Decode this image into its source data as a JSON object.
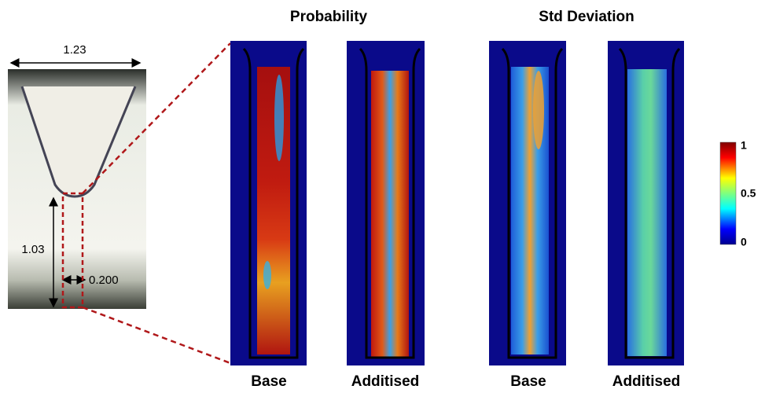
{
  "photo": {
    "labels": {
      "width": "1.23",
      "height": "1.03",
      "gap": "0.200"
    }
  },
  "groups": [
    {
      "title": "Probability",
      "panels": [
        "Base",
        "Additised"
      ]
    },
    {
      "title": "Std Deviation",
      "panels": [
        "Base",
        "Additised"
      ]
    }
  ],
  "colorbar": {
    "ticks": [
      "1",
      "0.5",
      "0"
    ]
  }
}
